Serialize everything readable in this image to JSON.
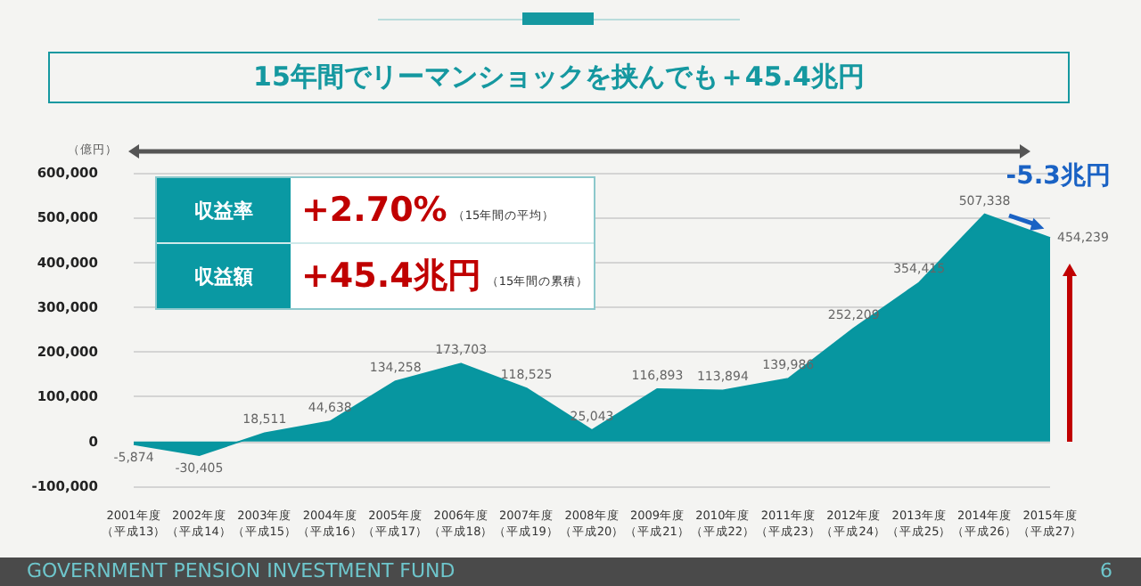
{
  "chart_data": {
    "type": "area",
    "title": "15年間でリーマンショックを挟んでも＋45.4兆円",
    "ylabel": "（億円）",
    "categories": [
      "2001年度（平成13）",
      "2002年度（平成14）",
      "2003年度（平成15）",
      "2004年度（平成16）",
      "2005年度（平成17）",
      "2006年度（平成18）",
      "2007年度（平成19）",
      "2008年度（平成20）",
      "2009年度（平成21）",
      "2010年度（平成22）",
      "2011年度（平成23）",
      "2012年度（平成24）",
      "2013年度（平成25）",
      "2014年度（平成26）",
      "2015年度（平成27）"
    ],
    "series": [
      {
        "color": "#0796a0",
        "values": [
          -5874,
          -30405,
          18511,
          44638,
          134258,
          173703,
          118525,
          25043,
          116893,
          113894,
          139986,
          252209,
          354415,
          507338,
          454239
        ],
        "value_labels": [
          "-5,874",
          "-30,405",
          "18,511",
          "44,638",
          "134,258",
          "173,703",
          "118,525",
          "25,043",
          "116,893",
          "113,894",
          "139,986",
          "252,209",
          "354,415",
          "507,338",
          "454,239"
        ]
      }
    ],
    "ylim": [
      -100000,
      600000
    ],
    "yticks": [
      {
        "value": -100000,
        "label": "-100,000"
      },
      {
        "value": 0,
        "label": "0"
      },
      {
        "value": 100000,
        "label": "100,000"
      },
      {
        "value": 200000,
        "label": "200,000"
      },
      {
        "value": 300000,
        "label": "300,000"
      },
      {
        "value": 400000,
        "label": "400,000"
      },
      {
        "value": 500000,
        "label": "500,000"
      },
      {
        "value": 600000,
        "label": "600,000"
      }
    ],
    "grid": "y",
    "marker": "none",
    "annotations": [
      "収益率",
      "+2.70%",
      "（15年間の平均）",
      "収益額",
      "+45.4兆円",
      "（15年間の累積）",
      "-5.3兆円",
      "GOVERNMENT PENSION INVESTMENT FUND",
      "6"
    ]
  }
}
